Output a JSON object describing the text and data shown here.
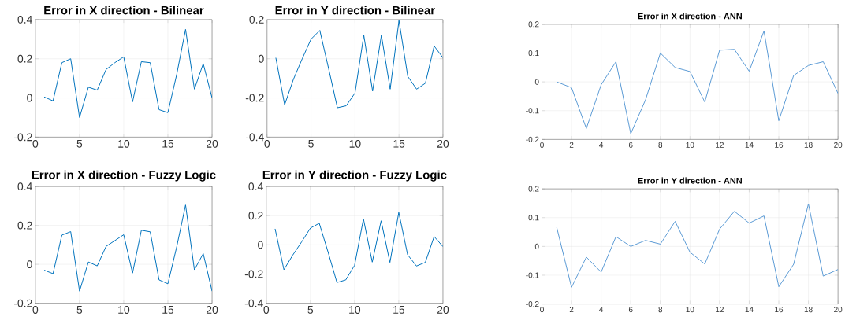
{
  "chart_data": [
    {
      "type": "line",
      "title": "Error in X direction - Bilinear",
      "x": [
        1,
        2,
        3,
        4,
        5,
        6,
        7,
        8,
        9,
        10,
        11,
        12,
        13,
        14,
        15,
        16,
        17,
        18,
        19,
        20
      ],
      "color": "#0072bd",
      "grid": true,
      "xlim": [
        0,
        20
      ],
      "ylim": [
        -0.2,
        0.4
      ],
      "xticks": [
        0,
        5,
        10,
        15,
        20
      ],
      "yticks": [
        -0.2,
        0,
        0.2,
        0.4
      ],
      "values": [
        0.005,
        -0.015,
        0.18,
        0.2,
        -0.1,
        0.055,
        0.04,
        0.145,
        0.18,
        0.21,
        -0.02,
        0.185,
        0.18,
        -0.06,
        -0.075,
        0.12,
        0.35,
        0.045,
        0.175,
        0.0
      ]
    },
    {
      "type": "line",
      "title": "Error in Y direction - Bilinear",
      "x": [
        1,
        2,
        3,
        4,
        5,
        6,
        7,
        8,
        9,
        10,
        11,
        12,
        13,
        14,
        15,
        16,
        17,
        18,
        19,
        20
      ],
      "color": "#0072bd",
      "grid": true,
      "xlim": [
        0,
        20
      ],
      "ylim": [
        -0.4,
        0.2
      ],
      "xticks": [
        0,
        5,
        10,
        15,
        20
      ],
      "yticks": [
        -0.4,
        -0.2,
        0,
        0.2
      ],
      "values": [
        0.005,
        -0.235,
        -0.105,
        0.0,
        0.1,
        0.145,
        -0.05,
        -0.25,
        -0.24,
        -0.175,
        0.12,
        -0.165,
        0.12,
        -0.155,
        0.195,
        -0.09,
        -0.155,
        -0.125,
        0.065,
        0.005
      ]
    },
    {
      "type": "line",
      "title": "Error in X direction - ANN",
      "x": [
        1,
        2,
        3,
        4,
        5,
        6,
        7,
        8,
        9,
        10,
        11,
        12,
        13,
        14,
        15,
        16,
        17,
        18,
        19,
        20
      ],
      "color": "#5b9bd5",
      "grid": true,
      "xlim": [
        0,
        20
      ],
      "ylim": [
        -0.2,
        0.2
      ],
      "xticks": [
        0,
        2,
        4,
        6,
        8,
        10,
        12,
        14,
        16,
        18,
        20
      ],
      "yticks": [
        -0.2,
        -0.1,
        0,
        0.1,
        0.2
      ],
      "values": [
        0.0,
        -0.02,
        -0.162,
        -0.01,
        0.07,
        -0.18,
        -0.062,
        0.1,
        0.05,
        0.036,
        -0.07,
        0.11,
        0.113,
        0.037,
        0.177,
        -0.135,
        0.022,
        0.057,
        0.07,
        -0.04
      ]
    },
    {
      "type": "line",
      "title": "Error in X direction - Fuzzy Logic",
      "x": [
        1,
        2,
        3,
        4,
        5,
        6,
        7,
        8,
        9,
        10,
        11,
        12,
        13,
        14,
        15,
        16,
        17,
        18,
        19,
        20
      ],
      "color": "#0072bd",
      "grid": true,
      "xlim": [
        0,
        20
      ],
      "ylim": [
        -0.2,
        0.4
      ],
      "xticks": [
        0,
        5,
        10,
        15,
        20
      ],
      "yticks": [
        -0.2,
        0,
        0.2,
        0.4
      ],
      "values": [
        -0.03,
        -0.048,
        0.15,
        0.168,
        -0.138,
        0.012,
        -0.008,
        0.092,
        0.122,
        0.152,
        -0.045,
        0.175,
        0.167,
        -0.08,
        -0.1,
        0.09,
        0.305,
        -0.028,
        0.055,
        -0.138
      ]
    },
    {
      "type": "line",
      "title": "Error in Y direction - Fuzzy Logic",
      "x": [
        1,
        2,
        3,
        4,
        5,
        6,
        7,
        8,
        9,
        10,
        11,
        12,
        13,
        14,
        15,
        16,
        17,
        18,
        19,
        20
      ],
      "color": "#0072bd",
      "grid": true,
      "xlim": [
        0,
        20
      ],
      "ylim": [
        -0.4,
        0.4
      ],
      "xticks": [
        0,
        5,
        10,
        15,
        20
      ],
      "yticks": [
        -0.4,
        -0.2,
        0,
        0.2,
        0.4
      ],
      "values": [
        0.11,
        -0.17,
        -0.07,
        0.02,
        0.115,
        0.148,
        -0.05,
        -0.258,
        -0.24,
        -0.14,
        0.178,
        -0.118,
        0.165,
        -0.12,
        0.222,
        -0.068,
        -0.145,
        -0.12,
        0.057,
        -0.012
      ]
    },
    {
      "type": "line",
      "title": "Error in Y direction - ANN",
      "x": [
        1,
        2,
        3,
        4,
        5,
        6,
        7,
        8,
        9,
        10,
        11,
        12,
        13,
        14,
        15,
        16,
        17,
        18,
        19,
        20
      ],
      "color": "#5b9bd5",
      "grid": true,
      "xlim": [
        0,
        20
      ],
      "ylim": [
        -0.2,
        0.2
      ],
      "xticks": [
        0,
        2,
        4,
        6,
        8,
        10,
        12,
        14,
        16,
        18,
        20
      ],
      "yticks": [
        -0.2,
        -0.1,
        0,
        0.1,
        0.2
      ],
      "values": [
        0.066,
        -0.142,
        -0.037,
        -0.089,
        0.034,
        0.0,
        0.021,
        0.008,
        0.087,
        -0.02,
        -0.061,
        0.06,
        0.122,
        0.081,
        0.106,
        -0.14,
        -0.062,
        0.148,
        -0.103,
        -0.08
      ]
    }
  ]
}
